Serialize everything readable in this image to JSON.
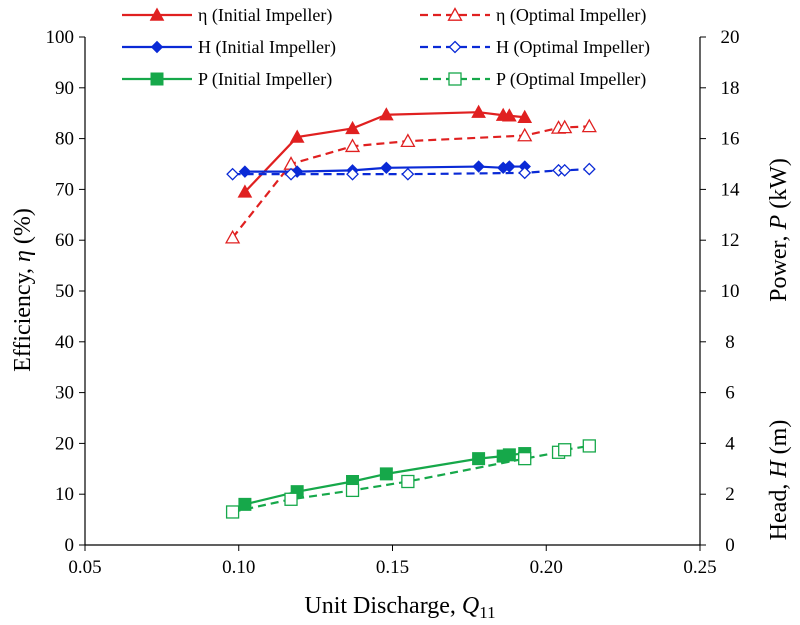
{
  "chart_data": {
    "type": "line",
    "x_axis": {
      "label": "Unit Discharge, ",
      "label_symbol": "Q",
      "label_sub": "11",
      "range": [
        0.05,
        0.25
      ],
      "ticks": [
        "0.05",
        "0.10",
        "0.15",
        "0.20",
        "0.25"
      ]
    },
    "y_left": {
      "label": "Efficiency, ",
      "label_symbol": "η",
      "label_suffix": " (%)",
      "range": [
        0,
        100
      ],
      "ticks": [
        "0",
        "10",
        "20",
        "30",
        "40",
        "50",
        "60",
        "70",
        "80",
        "90",
        "100"
      ]
    },
    "y_right": {
      "label_power": "Power, ",
      "label_power_symbol": "P",
      "label_power_suffix": " (kW)",
      "label_head": "Head, ",
      "label_head_symbol": "H",
      "label_head_suffix": " (m)",
      "range": [
        0,
        20
      ],
      "ticks": [
        "0",
        "2",
        "4",
        "6",
        "8",
        "10",
        "12",
        "14",
        "16",
        "18",
        "20"
      ]
    },
    "series": [
      {
        "name": "η (Initial Impeller)",
        "color": "#e02020",
        "dash": false,
        "marker": "triangle",
        "filled": true,
        "axis": "left",
        "x": [
          0.102,
          0.119,
          0.137,
          0.148,
          0.178,
          0.186,
          0.188,
          0.193
        ],
        "y": [
          69.5,
          80.3,
          82.0,
          84.7,
          85.2,
          84.6,
          84.5,
          84.2
        ]
      },
      {
        "name": "η (Optimal Impeller)",
        "color": "#e02020",
        "dash": true,
        "marker": "triangle",
        "filled": false,
        "axis": "left",
        "x": [
          0.098,
          0.117,
          0.137,
          0.155,
          0.193,
          0.204,
          0.206,
          0.214
        ],
        "y": [
          60.5,
          75.0,
          78.5,
          79.5,
          80.6,
          82.1,
          82.2,
          82.4
        ]
      },
      {
        "name": "H (Initial Impeller)",
        "color": "#0a2ad6",
        "dash": false,
        "marker": "diamond",
        "filled": true,
        "axis": "right",
        "x": [
          0.102,
          0.119,
          0.137,
          0.148,
          0.178,
          0.186,
          0.188,
          0.193
        ],
        "y": [
          14.7,
          14.7,
          14.75,
          14.85,
          14.9,
          14.85,
          14.9,
          14.9
        ]
      },
      {
        "name": "H (Optimal Impeller)",
        "color": "#0a2ad6",
        "dash": true,
        "marker": "diamond",
        "filled": false,
        "axis": "right",
        "x": [
          0.098,
          0.117,
          0.137,
          0.155,
          0.193,
          0.204,
          0.206,
          0.214
        ],
        "y": [
          14.6,
          14.6,
          14.6,
          14.6,
          14.65,
          14.75,
          14.75,
          14.8
        ]
      },
      {
        "name": "P (Initial Impeller)",
        "color": "#16a84a",
        "dash": false,
        "marker": "square",
        "filled": true,
        "axis": "right",
        "x": [
          0.102,
          0.119,
          0.137,
          0.148,
          0.178,
          0.186,
          0.188,
          0.193
        ],
        "y": [
          1.6,
          2.1,
          2.5,
          2.8,
          3.4,
          3.5,
          3.55,
          3.6
        ]
      },
      {
        "name": "P (Optimal Impeller)",
        "color": "#16a84a",
        "dash": true,
        "marker": "square",
        "filled": false,
        "axis": "right",
        "x": [
          0.098,
          0.117,
          0.137,
          0.155,
          0.193,
          0.204,
          0.206,
          0.214
        ],
        "y": [
          1.3,
          1.8,
          2.15,
          2.5,
          3.4,
          3.65,
          3.75,
          3.9
        ]
      }
    ],
    "legend_position": "top",
    "grid": false
  }
}
